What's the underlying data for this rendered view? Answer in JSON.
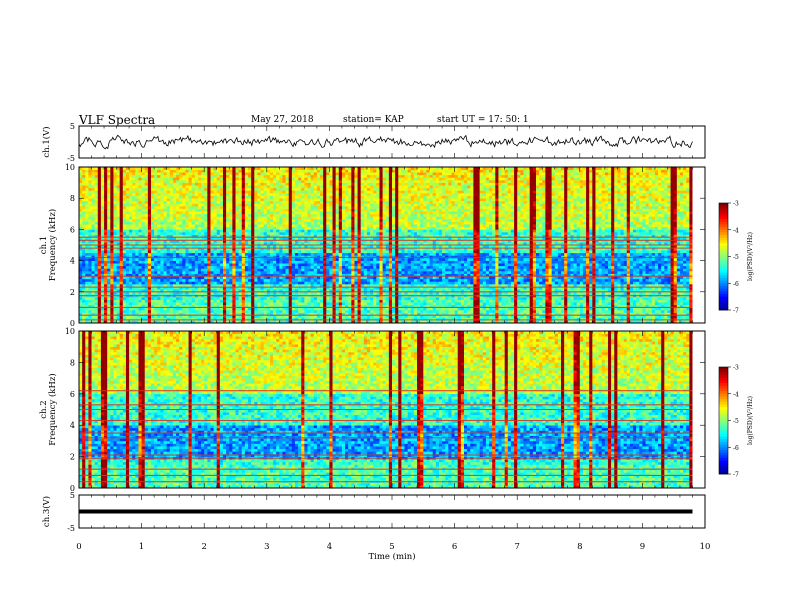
{
  "header": {
    "title": "VLF Spectra",
    "date": "May 27, 2018",
    "station": "station= KAP",
    "start": "start  UT  =   17: 50: 1"
  },
  "chart_data": [
    {
      "type": "line",
      "panel": "ch1-waveform",
      "ylabel": "ch.1(V)",
      "ylim": [
        -5,
        5
      ],
      "yticks": [
        "5",
        "-5"
      ],
      "xlim": [
        0,
        10
      ],
      "style": "noisy black trace ranging roughly -2 to 2 V over the full record (0 to ~9.8 min)"
    },
    {
      "type": "heatmap",
      "panel": "ch1-spectrogram",
      "ylabel": "ch.1\nFrequency (kHz)",
      "ylim": [
        0,
        10
      ],
      "yticks": [
        "0",
        "2",
        "4",
        "6",
        "8",
        "10"
      ],
      "xlim": [
        0,
        10
      ],
      "data_end_min": 9.8,
      "colorbar": {
        "label": "log(PSD)(V²/Hz)",
        "range": [
          -7,
          -3
        ],
        "ticks": [
          "-3",
          "-4",
          "-5",
          "-6",
          "-7"
        ]
      },
      "horizontal_lines_khz": [
        0.2,
        0.5,
        1.0,
        1.75,
        2.0,
        2.3,
        3.0,
        4.2,
        4.8,
        5.0,
        5.3,
        5.5
      ],
      "low_band_khz": [
        2.5,
        4.5
      ],
      "high_band_khz": [
        6.0,
        10.0
      ]
    },
    {
      "type": "heatmap",
      "panel": "ch2-spectrogram",
      "ylabel": "ch.2\nFrequency (kHz)",
      "ylim": [
        0,
        10
      ],
      "yticks": [
        "0",
        "2",
        "4",
        "6",
        "8",
        "10"
      ],
      "xlim": [
        0,
        10
      ],
      "data_end_min": 9.8,
      "colorbar": {
        "label": "log(PSD)(V²/Hz)",
        "range": [
          -7,
          -3
        ],
        "ticks": [
          "-3",
          "-4",
          "-5",
          "-6",
          "-7"
        ]
      },
      "horizontal_lines_khz": [
        0.4,
        0.8,
        1.2,
        1.9,
        2.1,
        3.2,
        3.5,
        4.3,
        5.0,
        5.3,
        6.2
      ],
      "low_band_khz": [
        1.8,
        4.0
      ],
      "high_band_khz": [
        6.0,
        10.0
      ]
    },
    {
      "type": "line",
      "panel": "ch3-waveform",
      "ylabel": "ch.3(V)",
      "ylim": [
        -5,
        5
      ],
      "yticks": [
        "5",
        "-5"
      ],
      "xlim": [
        0,
        10
      ],
      "value_v": 0,
      "style": "thick flat black line near 0 V from 0 to ~9.8 min"
    }
  ],
  "xaxis": {
    "label": "Time (min)",
    "ticks": [
      "0",
      "1",
      "2",
      "3",
      "4",
      "5",
      "6",
      "7",
      "8",
      "9",
      "10"
    ]
  }
}
